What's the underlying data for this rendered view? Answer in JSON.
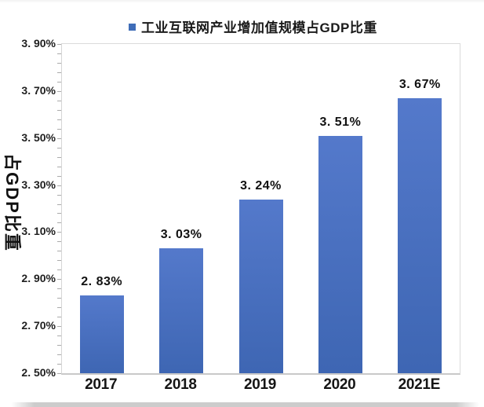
{
  "page": {
    "background": "#ffffff"
  },
  "chart_data": {
    "type": "bar",
    "legend": "工业互联网产业增加值规模占GDP比重",
    "ylabel": "占GDP比重",
    "categories": [
      "2017",
      "2018",
      "2019",
      "2020",
      "2021E"
    ],
    "values": [
      2.83,
      3.03,
      3.24,
      3.51,
      3.67
    ],
    "value_labels": [
      "2. 83%",
      "3. 03%",
      "3. 24%",
      "3. 51%",
      "3. 67%"
    ],
    "y_tick_labels": [
      "3. 90%",
      "3. 70%",
      "3. 50%",
      "3. 30%",
      "3. 10%",
      "2. 90%",
      "2. 70%",
      "2. 50%"
    ],
    "ylim": [
      2.5,
      3.9
    ],
    "y_major_unit": 0.2,
    "y_minor_unit": 0.04,
    "grid": false,
    "legend_position": "top",
    "colors": {
      "bar_top": "#5479CB",
      "bar_bottom": "#3E66B3",
      "legend_swatch": "#3F6DB8",
      "axis_line": "#C9C9C9",
      "plot_border": "#DADADA",
      "tick_mark": "#ABABAB",
      "text": "#1A1A1A"
    }
  }
}
